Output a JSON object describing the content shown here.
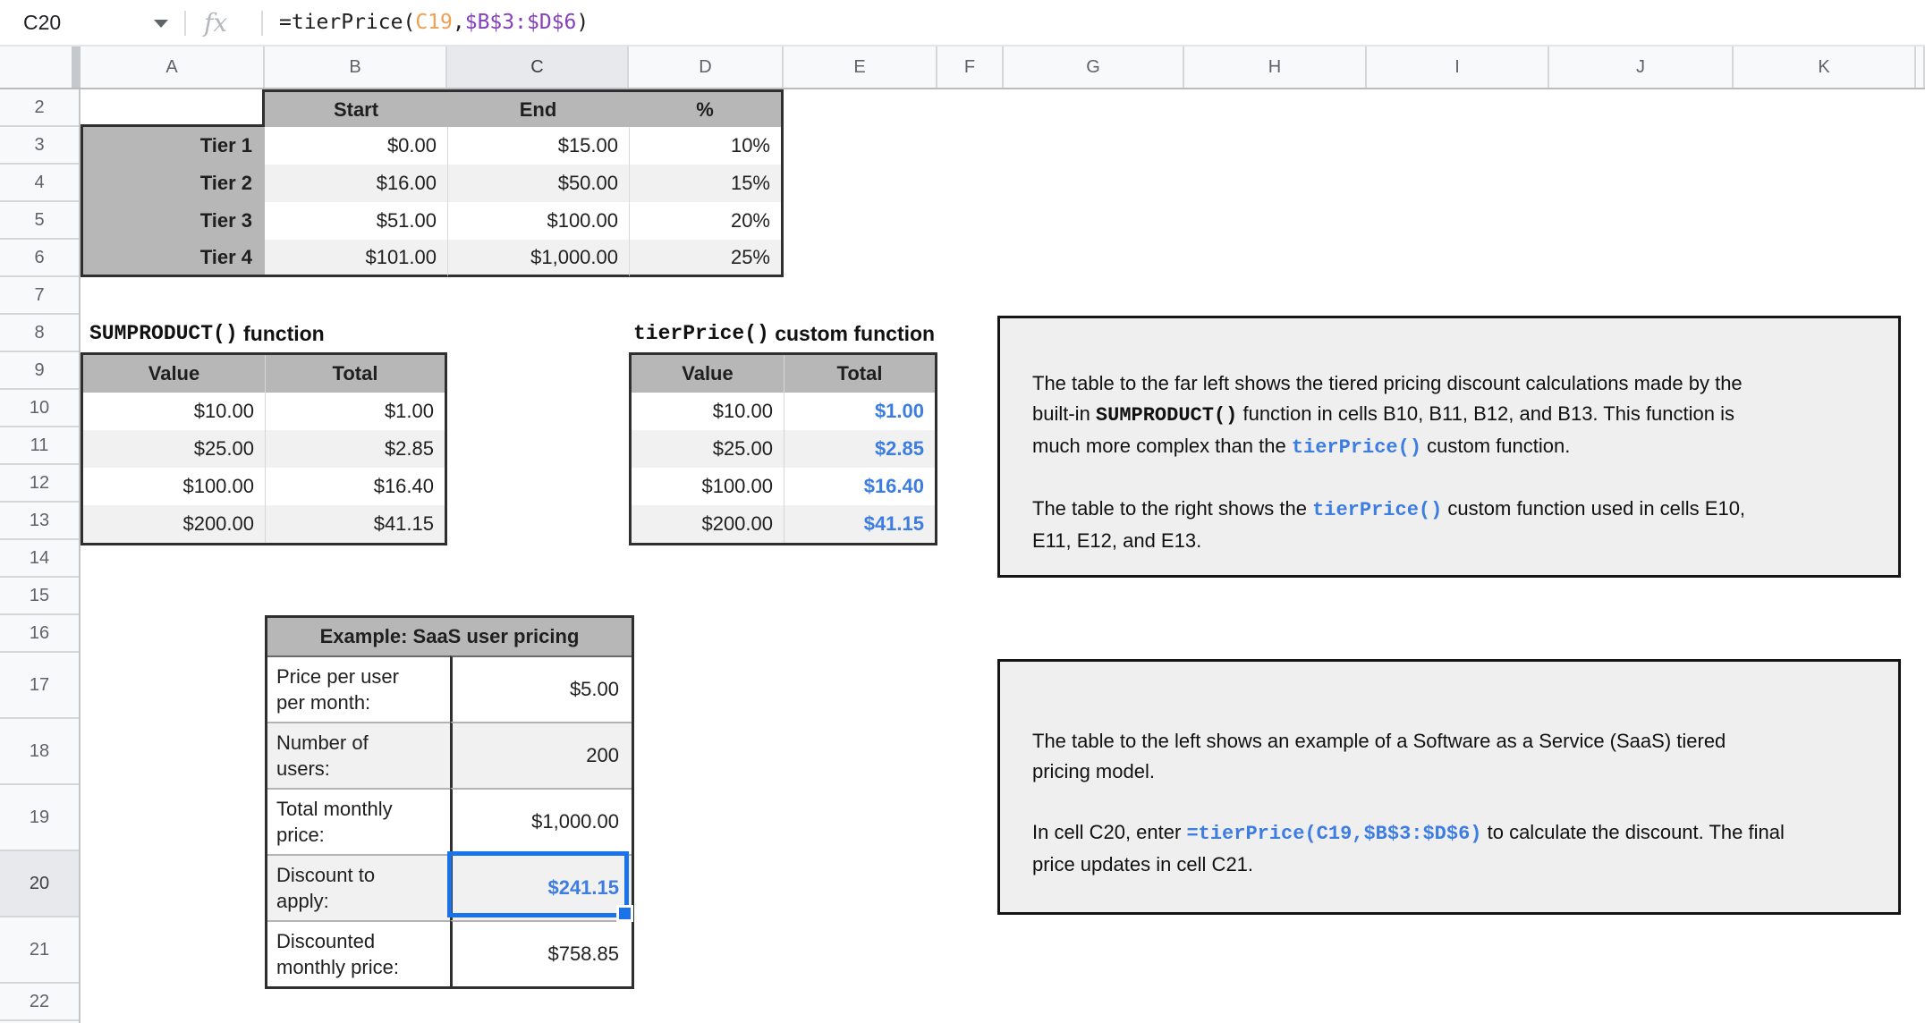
{
  "formula_bar": {
    "name_box": "C20",
    "fx_label": "fx",
    "formula_runs": [
      {
        "t": "=tierPrice(",
        "s": "k"
      },
      {
        "t": "C19",
        "s": "o"
      },
      {
        "t": ",",
        "s": "k"
      },
      {
        "t": "$B$3:$D$6",
        "s": "v"
      },
      {
        "t": ")",
        "s": "k"
      }
    ]
  },
  "sheet": {
    "column_headers": [
      "A",
      "B",
      "C",
      "D",
      "E",
      "F",
      "G",
      "H",
      "I",
      "J",
      "K",
      ""
    ],
    "row_headers": [
      2,
      3,
      4,
      5,
      6,
      7,
      8,
      9,
      10,
      11,
      12,
      13,
      14,
      15,
      16,
      17,
      18,
      19,
      20,
      21,
      22
    ],
    "selected": {
      "cell": "C20",
      "column": "C",
      "row": 20
    }
  },
  "colors": {
    "value_blue": "#3d7de2",
    "selection_blue": "#1a73e8",
    "ref_orange": "#f0a053",
    "ref_purple": "#8540bb",
    "table_header_gray": "#b7b7b7",
    "banding_gray": "#f1f1f1",
    "textbox_gray": "#efefef"
  },
  "tier_table": {
    "header": [
      "Start",
      "End",
      "%"
    ],
    "rows": [
      {
        "label": "Tier 1",
        "start": "$0.00",
        "end": "$15.00",
        "pct": "10%"
      },
      {
        "label": "Tier 2",
        "start": "$16.00",
        "end": "$50.00",
        "pct": "15%"
      },
      {
        "label": "Tier 3",
        "start": "$51.00",
        "end": "$100.00",
        "pct": "20%"
      },
      {
        "label": "Tier 4",
        "start": "$101.00",
        "end": "$1,000.00",
        "pct": "25%"
      }
    ]
  },
  "sumproduct_section": {
    "title_mono": "SUMPRODUCT()",
    "title_rest": " function",
    "header": [
      "Value",
      "Total"
    ],
    "rows": [
      {
        "value": "$10.00",
        "total": "$1.00"
      },
      {
        "value": "$25.00",
        "total": "$2.85"
      },
      {
        "value": "$100.00",
        "total": "$16.40"
      },
      {
        "value": "$200.00",
        "total": "$41.15"
      }
    ]
  },
  "tierprice_section": {
    "title_mono": "tierPrice()",
    "title_rest": " custom function",
    "header": [
      "Value",
      "Total"
    ],
    "rows": [
      {
        "value": "$10.00",
        "total": "$1.00"
      },
      {
        "value": "$25.00",
        "total": "$2.85"
      },
      {
        "value": "$100.00",
        "total": "$16.40"
      },
      {
        "value": "$200.00",
        "total": "$41.15"
      }
    ]
  },
  "saas_table": {
    "title": "Example: SaaS user pricing",
    "rows": [
      {
        "label_line1": "Price per user",
        "label_line2": "per month:",
        "value": "$5.00",
        "blue": false,
        "selected": false
      },
      {
        "label_line1": "Number of",
        "label_line2": "users:",
        "value": "200",
        "blue": false,
        "selected": false
      },
      {
        "label_line1": "Total monthly",
        "label_line2": "price:",
        "value": "$1,000.00",
        "blue": false,
        "selected": false
      },
      {
        "label_line1": "Discount to",
        "label_line2": "apply:",
        "value": "$241.15",
        "blue": true,
        "selected": true
      },
      {
        "label_line1": "Discounted",
        "label_line2": "monthly price:",
        "value": "$758.85",
        "blue": false,
        "selected": false
      }
    ]
  },
  "textbox1": {
    "paragraphs": [
      [
        [
          {
            "t": "The table to the far left shows the tiered pricing discount calculations made by the",
            "s": "p"
          }
        ],
        [
          {
            "t": "built-in ",
            "s": "p"
          },
          {
            "t": "SUMPRODUCT()",
            "s": "m"
          },
          {
            "t": " function in cells B10, B11, B12, and B13. This function is",
            "s": "p"
          }
        ],
        [
          {
            "t": "much more complex than the ",
            "s": "p"
          },
          {
            "t": "tierPrice()",
            "s": "b"
          },
          {
            "t": " custom function.",
            "s": "p"
          }
        ]
      ],
      [
        [
          {
            "t": "The table to the right shows the ",
            "s": "p"
          },
          {
            "t": "tierPrice()",
            "s": "b"
          },
          {
            "t": " custom function used in cells E10,",
            "s": "p"
          }
        ],
        [
          {
            "t": "E11, E12, and E13.",
            "s": "p"
          }
        ]
      ]
    ]
  },
  "textbox2": {
    "paragraphs": [
      [
        [
          {
            "t": "The table to the left shows an example of a Software as a Service (SaaS) tiered",
            "s": "p"
          }
        ],
        [
          {
            "t": "pricing model.",
            "s": "p"
          }
        ]
      ],
      [
        [
          {
            "t": "In cell C20, enter ",
            "s": "p"
          },
          {
            "t": "=tierPrice(C19,$B$3:$D$6)",
            "s": "b"
          },
          {
            "t": " to calculate the discount. The final",
            "s": "p"
          }
        ],
        [
          {
            "t": "price updates in cell C21.",
            "s": "p"
          }
        ]
      ]
    ]
  }
}
